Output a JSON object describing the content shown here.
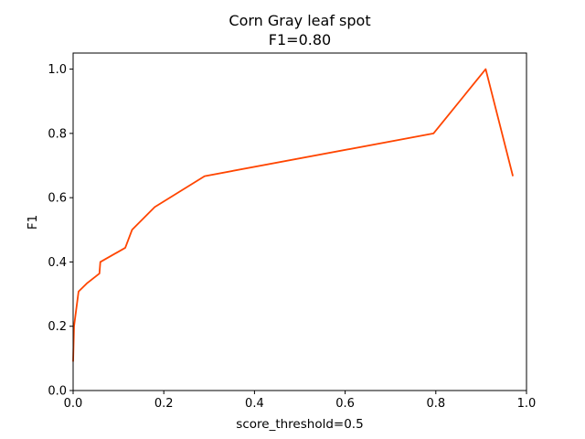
{
  "chart_data": {
    "type": "line",
    "title": "Corn Gray leaf spot",
    "subtitle": "F1=0.80",
    "xlabel": "score_threshold=0.5",
    "ylabel": "F1",
    "xlim": [
      0.0,
      1.0
    ],
    "ylim": [
      0.0,
      1.05
    ],
    "x_ticks": [
      "0.0",
      "0.2",
      "0.4",
      "0.6",
      "0.8",
      "1.0"
    ],
    "y_ticks": [
      "0.0",
      "0.2",
      "0.4",
      "0.6",
      "0.8",
      "1.0"
    ],
    "grid": false,
    "series": [
      {
        "color": "#ff4500",
        "x": [
          0.0,
          0.002,
          0.012,
          0.03,
          0.058,
          0.06,
          0.115,
          0.13,
          0.18,
          0.29,
          0.795,
          0.91,
          0.97
        ],
        "y": [
          0.09,
          0.2,
          0.308,
          0.333,
          0.364,
          0.4,
          0.444,
          0.5,
          0.571,
          0.667,
          0.8,
          1.0,
          0.667
        ]
      }
    ]
  }
}
